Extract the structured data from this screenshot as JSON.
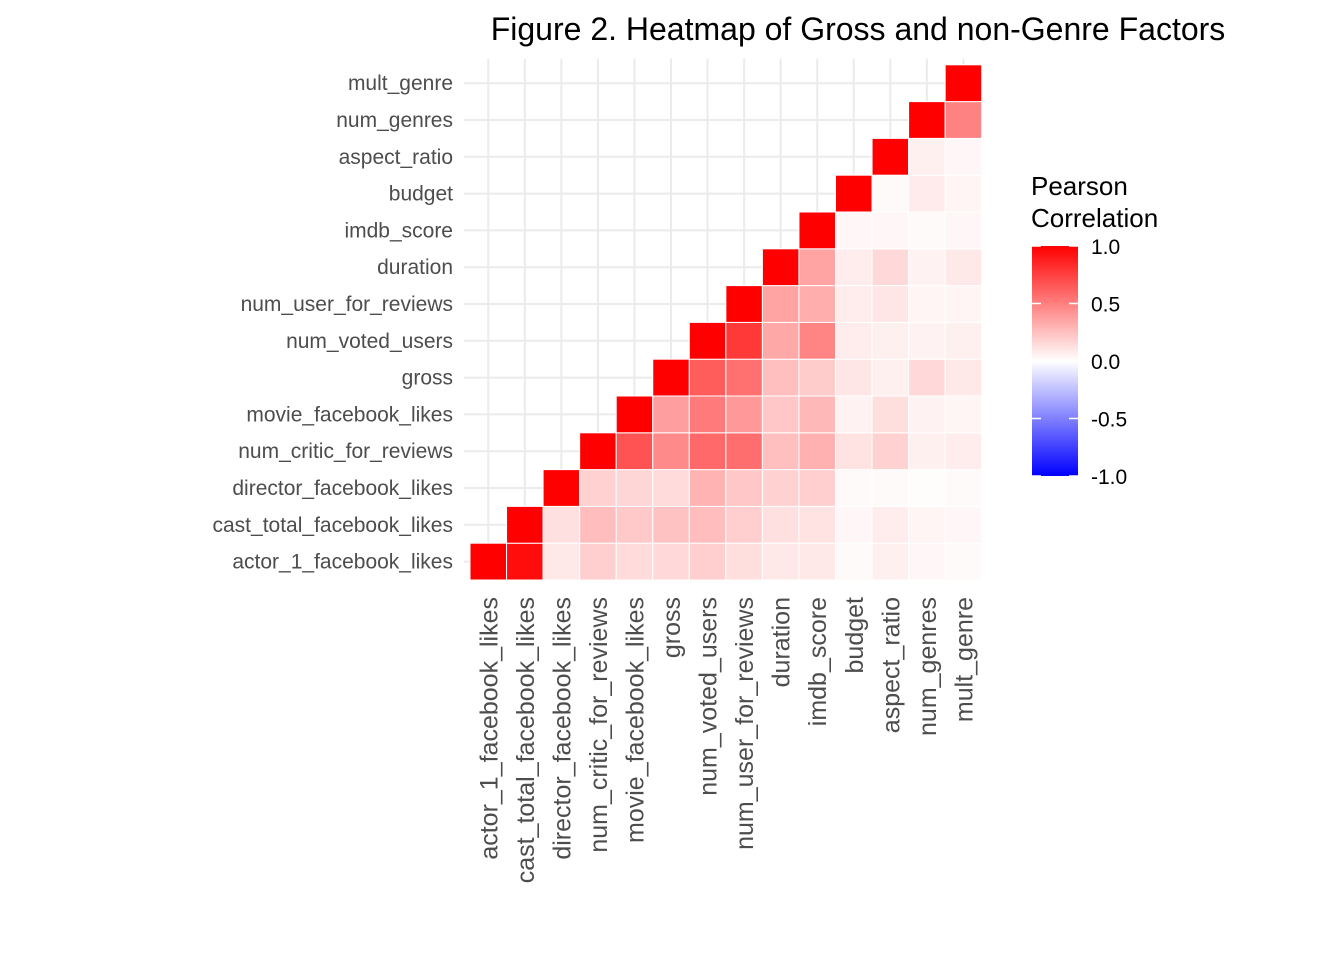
{
  "chart_data": {
    "type": "heatmap",
    "title": "Figure 2. Heatmap of Gross and non-Genre Factors",
    "variables": [
      "actor_1_facebook_likes",
      "cast_total_facebook_likes",
      "director_facebook_likes",
      "num_critic_for_reviews",
      "movie_facebook_likes",
      "gross",
      "num_voted_users",
      "num_user_for_reviews",
      "duration",
      "imdb_score",
      "budget",
      "aspect_ratio",
      "num_genres",
      "mult_genre"
    ],
    "matrix_upper_triangle": [
      [
        1.0,
        0.95,
        0.09,
        0.19,
        0.14,
        0.15,
        0.19,
        0.13,
        0.09,
        0.09,
        0.02,
        0.06,
        0.03,
        0.02
      ],
      [
        null,
        1.0,
        0.12,
        0.26,
        0.21,
        0.24,
        0.26,
        0.19,
        0.12,
        0.11,
        0.03,
        0.07,
        0.04,
        0.03
      ],
      [
        null,
        null,
        1.0,
        0.18,
        0.16,
        0.14,
        0.3,
        0.22,
        0.18,
        0.19,
        0.02,
        0.02,
        0.01,
        0.02
      ],
      [
        null,
        null,
        null,
        1.0,
        0.68,
        0.46,
        0.59,
        0.57,
        0.25,
        0.31,
        0.11,
        0.18,
        0.06,
        0.07
      ],
      [
        null,
        null,
        null,
        null,
        1.0,
        0.38,
        0.52,
        0.4,
        0.22,
        0.28,
        0.05,
        0.13,
        0.05,
        0.04
      ],
      [
        null,
        null,
        null,
        null,
        null,
        1.0,
        0.64,
        0.56,
        0.25,
        0.2,
        0.1,
        0.06,
        0.15,
        0.09
      ],
      [
        null,
        null,
        null,
        null,
        null,
        null,
        1.0,
        0.78,
        0.34,
        0.48,
        0.07,
        0.06,
        0.05,
        0.06
      ],
      [
        null,
        null,
        null,
        null,
        null,
        null,
        null,
        1.0,
        0.36,
        0.32,
        0.07,
        0.1,
        0.04,
        0.04
      ],
      [
        null,
        null,
        null,
        null,
        null,
        null,
        null,
        null,
        1.0,
        0.36,
        0.07,
        0.15,
        0.05,
        0.09
      ],
      [
        null,
        null,
        null,
        null,
        null,
        null,
        null,
        null,
        null,
        1.0,
        0.03,
        0.03,
        0.02,
        0.03
      ],
      [
        null,
        null,
        null,
        null,
        null,
        null,
        null,
        null,
        null,
        null,
        1.0,
        0.02,
        0.08,
        0.04
      ],
      [
        null,
        null,
        null,
        null,
        null,
        null,
        null,
        null,
        null,
        null,
        null,
        1.0,
        0.06,
        0.03
      ],
      [
        null,
        null,
        null,
        null,
        null,
        null,
        null,
        null,
        null,
        null,
        null,
        null,
        1.0,
        0.49
      ],
      [
        null,
        null,
        null,
        null,
        null,
        null,
        null,
        null,
        null,
        null,
        null,
        null,
        null,
        1.0
      ]
    ],
    "legend": {
      "title_lines": [
        "Pearson",
        "Correlation"
      ],
      "ticks": [
        "1.0",
        "0.5",
        "0.0",
        "-0.5",
        "-1.0"
      ],
      "range": [
        -1.0,
        1.0
      ],
      "colors": {
        "low": "#0000ff",
        "mid": "#ffffff",
        "high": "#ff0000"
      }
    },
    "grid": true,
    "legend_position": "right"
  }
}
